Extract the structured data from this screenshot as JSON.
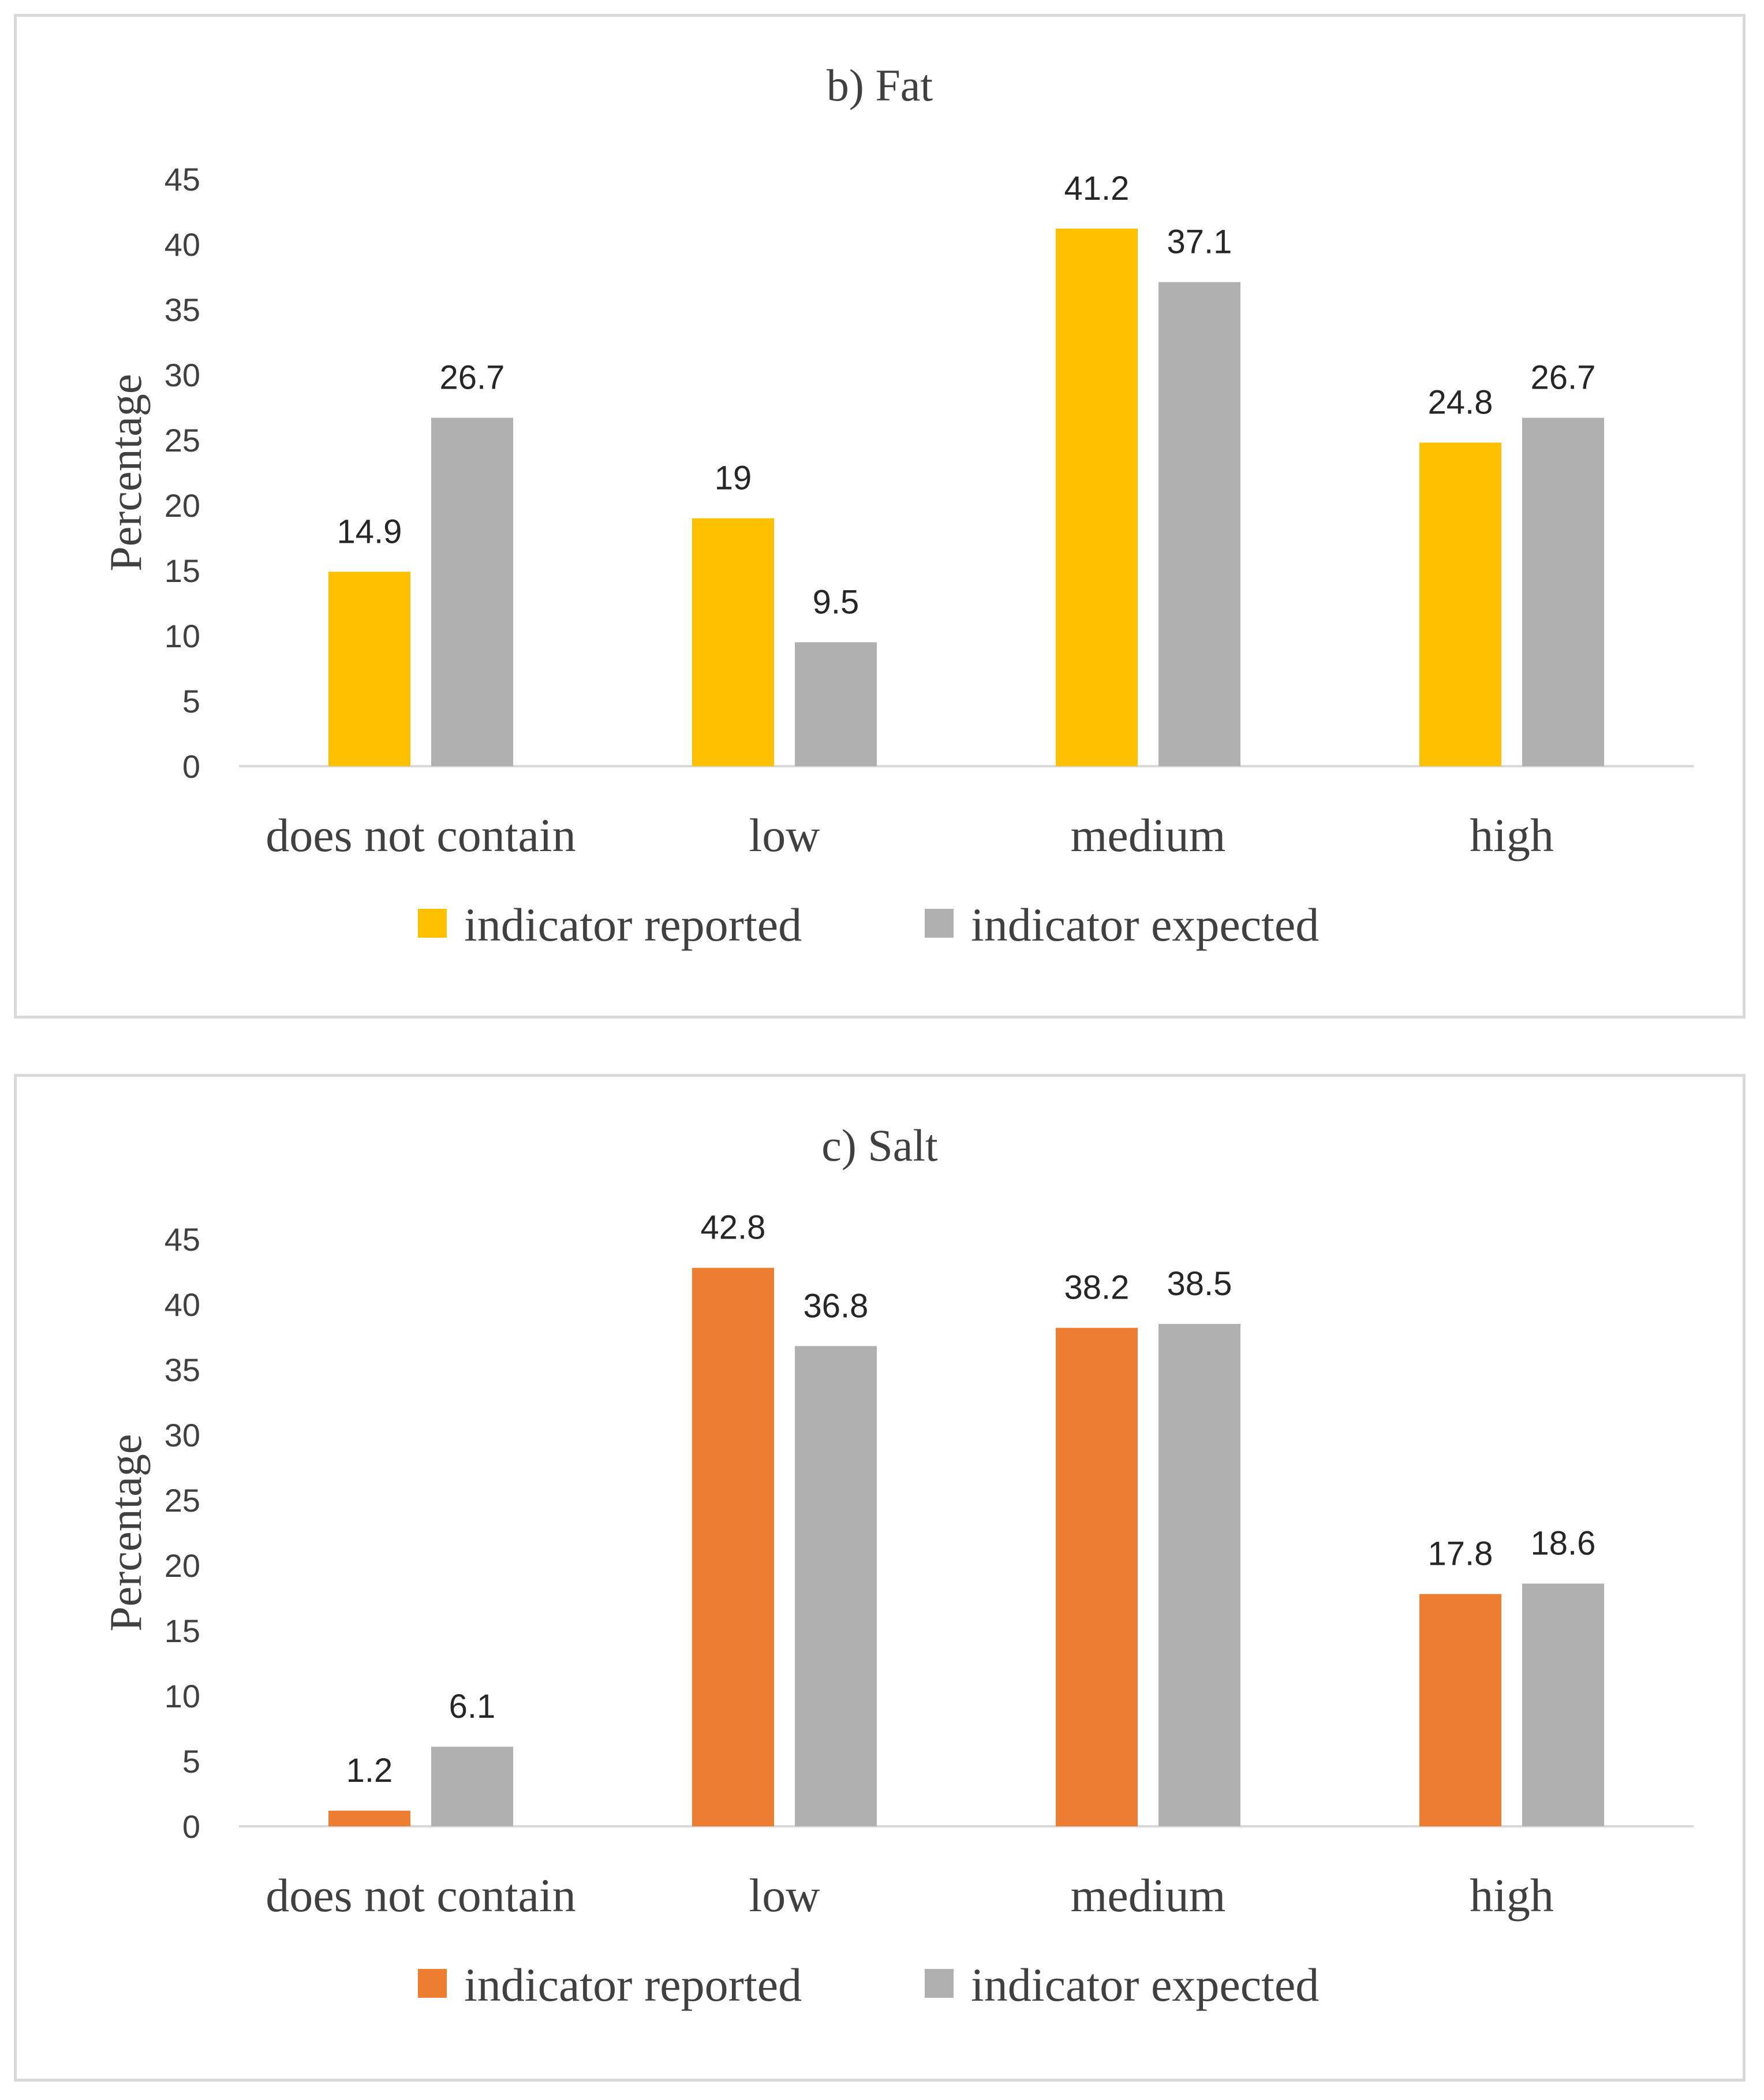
{
  "chart_data": [
    {
      "type": "bar",
      "title": "b) Fat",
      "ylabel": "Percentage",
      "xlabel": "",
      "ylim": [
        0,
        45
      ],
      "yticks": [
        0,
        5,
        10,
        15,
        20,
        25,
        30,
        35,
        40,
        45
      ],
      "categories": [
        "does not contain",
        "low",
        "medium",
        "high"
      ],
      "series": [
        {
          "name": "indicator reported",
          "color": "#FFC000",
          "values": [
            14.9,
            19,
            41.2,
            24.8
          ],
          "labels": [
            "14.9",
            "19",
            "41.2",
            "24.8"
          ]
        },
        {
          "name": "indicator expected",
          "color": "#B0B0B0",
          "values": [
            26.7,
            9.5,
            37.1,
            26.7
          ],
          "labels": [
            "26.7",
            "9.5",
            "37.1",
            "26.7"
          ]
        }
      ],
      "legend": "bottom"
    },
    {
      "type": "bar",
      "title": "c) Salt",
      "ylabel": "Percentage",
      "xlabel": "",
      "ylim": [
        0,
        45
      ],
      "yticks": [
        0,
        5,
        10,
        15,
        20,
        25,
        30,
        35,
        40,
        45
      ],
      "categories": [
        "does not contain",
        "low",
        "medium",
        "high"
      ],
      "series": [
        {
          "name": "indicator reported",
          "color": "#ED7D31",
          "values": [
            1.2,
            42.8,
            38.2,
            17.8
          ],
          "labels": [
            "1.2",
            "42.8",
            "38.2",
            "17.8"
          ]
        },
        {
          "name": "indicator expected",
          "color": "#B0B0B0",
          "values": [
            6.1,
            36.8,
            38.5,
            18.6
          ],
          "labels": [
            "6.1",
            "36.8",
            "38.5",
            "18.6"
          ]
        }
      ],
      "legend": "bottom"
    }
  ]
}
